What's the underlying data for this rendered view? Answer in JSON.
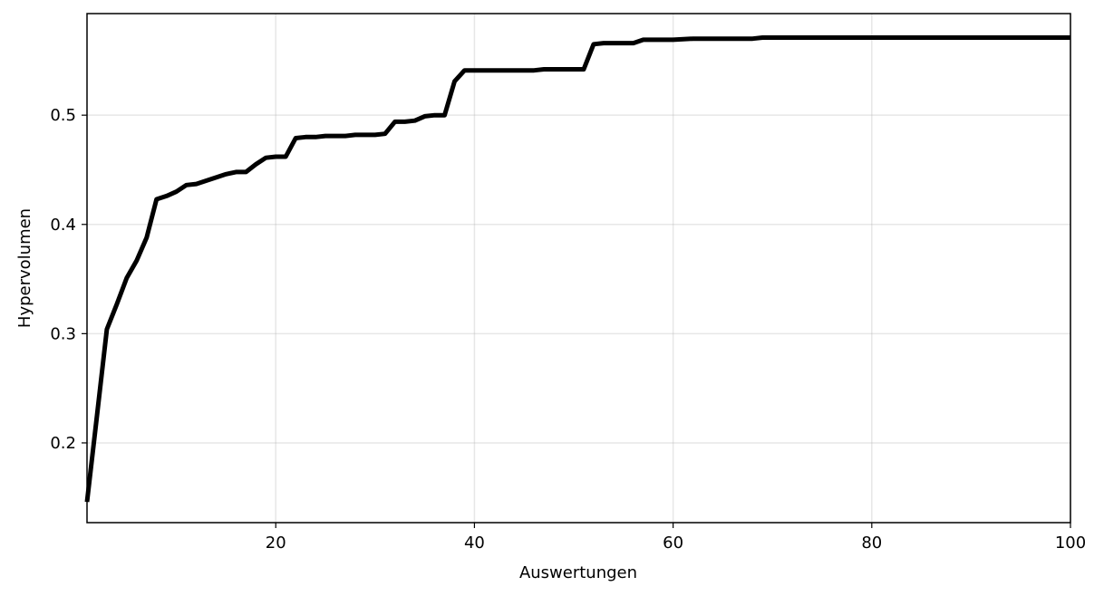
{
  "chart_data": {
    "type": "line",
    "title": "",
    "xlabel": "Auswertungen",
    "ylabel": "Hypervolumen",
    "xlim": [
      1,
      100
    ],
    "ylim": [
      0.127,
      0.593
    ],
    "grid": true,
    "x_ticks": [
      {
        "value": 20,
        "label": "20"
      },
      {
        "value": 40,
        "label": "40"
      },
      {
        "value": 60,
        "label": "60"
      },
      {
        "value": 80,
        "label": "80"
      },
      {
        "value": 100,
        "label": "100"
      }
    ],
    "y_ticks": [
      {
        "value": 0.2,
        "label": "0.2"
      },
      {
        "value": 0.3,
        "label": "0.3"
      },
      {
        "value": 0.4,
        "label": "0.4"
      },
      {
        "value": 0.5,
        "label": "0.5"
      }
    ],
    "series": [
      {
        "color": "#000000",
        "points": [
          [
            1,
            0.146
          ],
          [
            2,
            0.225
          ],
          [
            3,
            0.304
          ],
          [
            4,
            0.327
          ],
          [
            5,
            0.351
          ],
          [
            6,
            0.367
          ],
          [
            7,
            0.388
          ],
          [
            8,
            0.423
          ],
          [
            9,
            0.426
          ],
          [
            10,
            0.43
          ],
          [
            11,
            0.436
          ],
          [
            12,
            0.437
          ],
          [
            13,
            0.44
          ],
          [
            14,
            0.443
          ],
          [
            15,
            0.446
          ],
          [
            16,
            0.448
          ],
          [
            17,
            0.448
          ],
          [
            18,
            0.455
          ],
          [
            19,
            0.461
          ],
          [
            20,
            0.462
          ],
          [
            21,
            0.462
          ],
          [
            22,
            0.479
          ],
          [
            23,
            0.48
          ],
          [
            24,
            0.48
          ],
          [
            25,
            0.481
          ],
          [
            26,
            0.481
          ],
          [
            27,
            0.481
          ],
          [
            28,
            0.482
          ],
          [
            29,
            0.482
          ],
          [
            30,
            0.482
          ],
          [
            31,
            0.483
          ],
          [
            32,
            0.494
          ],
          [
            33,
            0.494
          ],
          [
            34,
            0.495
          ],
          [
            35,
            0.499
          ],
          [
            36,
            0.5
          ],
          [
            37,
            0.5
          ],
          [
            38,
            0.531
          ],
          [
            39,
            0.541
          ],
          [
            40,
            0.541
          ],
          [
            41,
            0.541
          ],
          [
            42,
            0.541
          ],
          [
            43,
            0.541
          ],
          [
            44,
            0.541
          ],
          [
            45,
            0.541
          ],
          [
            46,
            0.541
          ],
          [
            47,
            0.542
          ],
          [
            48,
            0.542
          ],
          [
            49,
            0.542
          ],
          [
            50,
            0.542
          ],
          [
            51,
            0.542
          ],
          [
            52,
            0.565
          ],
          [
            53,
            0.566
          ],
          [
            54,
            0.566
          ],
          [
            55,
            0.566
          ],
          [
            56,
            0.566
          ],
          [
            57,
            0.569
          ],
          [
            58,
            0.569
          ],
          [
            59,
            0.569
          ],
          [
            60,
            0.569
          ],
          [
            62,
            0.57
          ],
          [
            64,
            0.57
          ],
          [
            66,
            0.57
          ],
          [
            68,
            0.57
          ],
          [
            69,
            0.571
          ],
          [
            72,
            0.571
          ],
          [
            76,
            0.571
          ],
          [
            80,
            0.571
          ],
          [
            84,
            0.571
          ],
          [
            88,
            0.571
          ],
          [
            92,
            0.571
          ],
          [
            96,
            0.571
          ],
          [
            100,
            0.571
          ]
        ]
      }
    ]
  }
}
